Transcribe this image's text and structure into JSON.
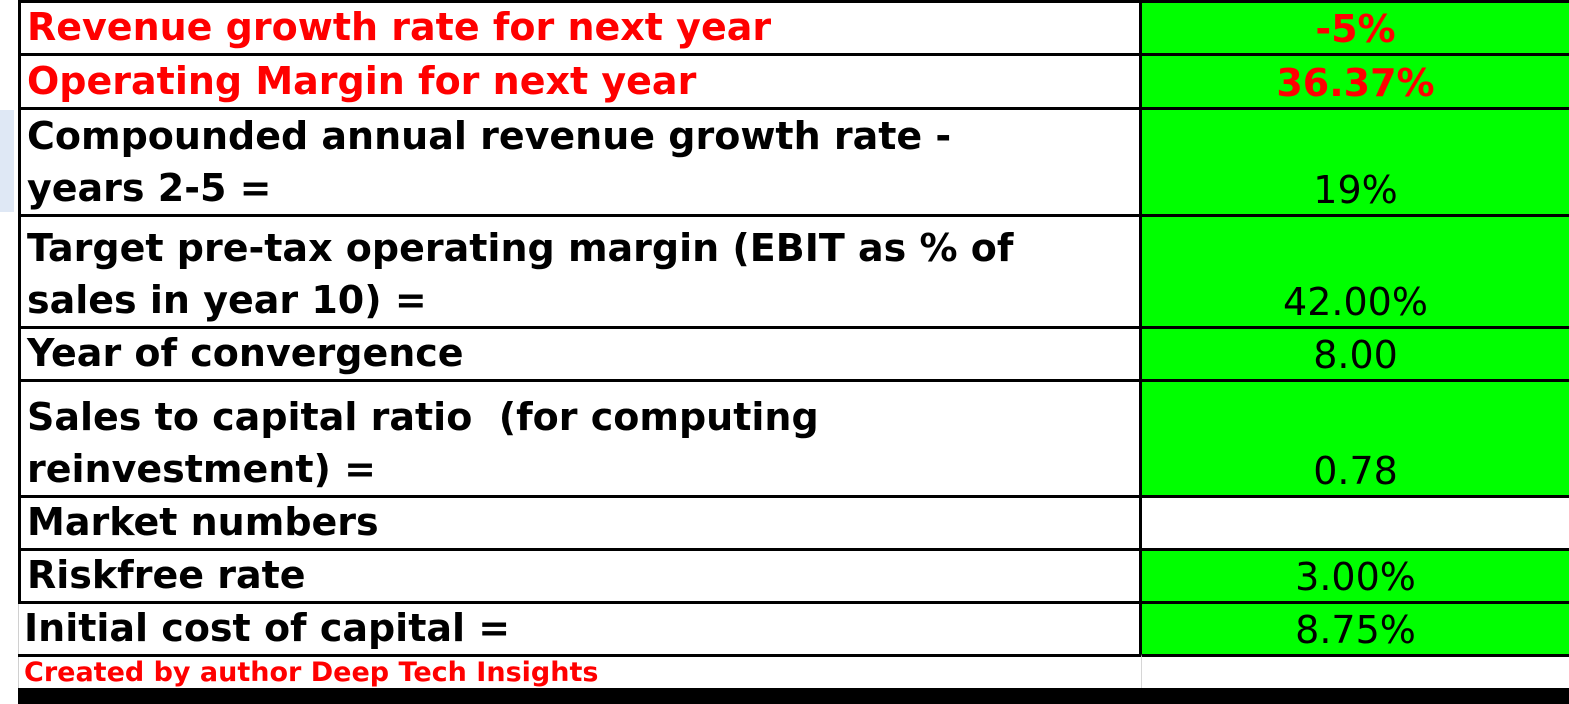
{
  "rows": [
    {
      "label": "Revenue growth rate for next year",
      "value": "-5%"
    },
    {
      "label": "Operating Margin for next year",
      "value": "36.37%"
    },
    {
      "label": "Compounded annual revenue growth rate -\nyears 2-5 =",
      "value": "19%"
    },
    {
      "label": "Target pre-tax operating margin (EBIT as % of\nsales in year 10) =",
      "value": "42.00%"
    },
    {
      "label": "Year of convergence",
      "value": "8.00"
    },
    {
      "label": "Sales to capital ratio  (for computing\nreinvestment) =",
      "value": "0.78"
    },
    {
      "label": "Market numbers",
      "value": ""
    },
    {
      "label": "Riskfree rate",
      "value": "3.00%"
    },
    {
      "label": "Initial cost of capital =",
      "value": "8.75%"
    }
  ],
  "credit": "Created by author Deep Tech Insights",
  "colors": {
    "highlight": "#00ff00",
    "accent_text": "#ff0000",
    "border": "#000000"
  }
}
